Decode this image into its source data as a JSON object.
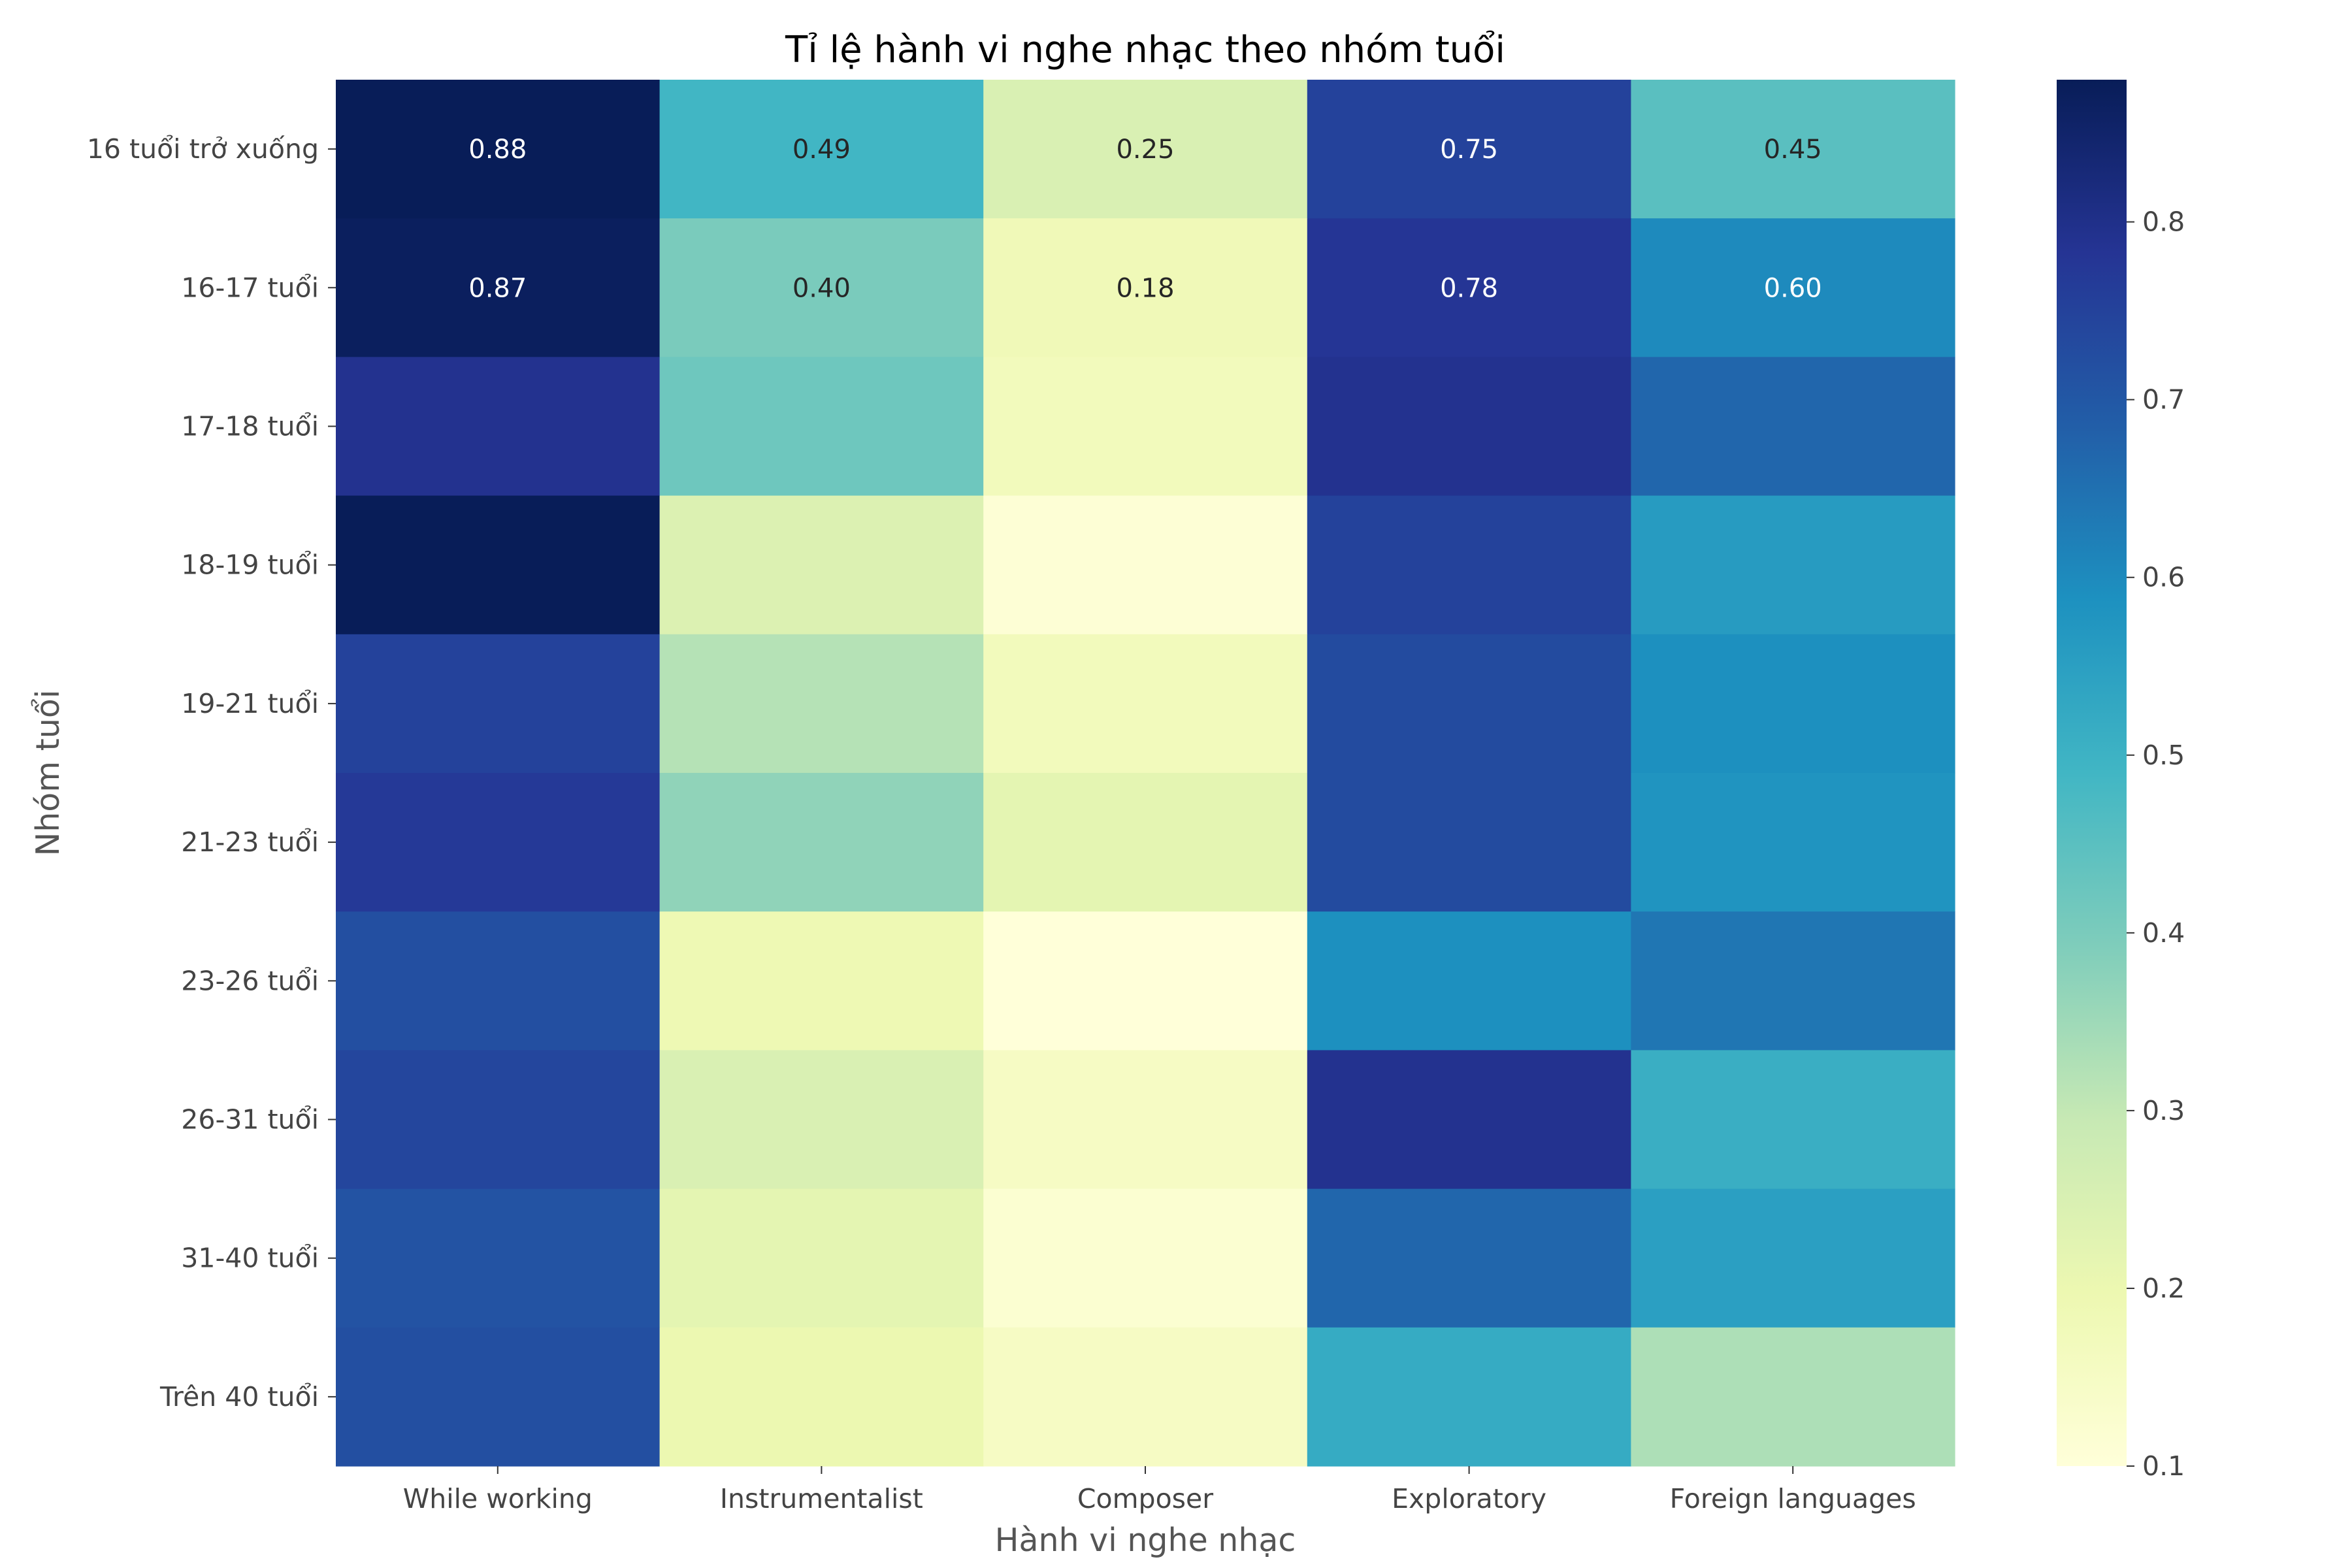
{
  "chart_data": {
    "type": "heatmap",
    "title": "Tỉ lệ hành vi nghe nhạc theo nhóm tuổi",
    "xlabel": "Hành vi nghe nhạc",
    "ylabel": "Nhóm tuổi",
    "colormap": "YlGnBu",
    "x_categories": [
      "While working",
      "Instrumentalist",
      "Composer",
      "Exploratory",
      "Foreign languages"
    ],
    "y_categories": [
      "16 tuổi trở xuống",
      "16-17 tuổi",
      "17-18 tuổi",
      "18-19 tuổi",
      "19-21 tuổi",
      "21-23 tuổi",
      "23-26 tuổi",
      "26-31 tuổi",
      "31-40 tuổi",
      "Trên 40 tuổi"
    ],
    "values": [
      [
        0.88,
        0.49,
        0.25,
        0.75,
        0.45
      ],
      [
        0.87,
        0.4,
        0.18,
        0.78,
        0.6
      ],
      [
        0.79,
        0.42,
        0.17,
        0.79,
        0.67
      ],
      [
        0.88,
        0.24,
        0.11,
        0.75,
        0.56
      ],
      [
        0.75,
        0.32,
        0.17,
        0.73,
        0.59
      ],
      [
        0.77,
        0.37,
        0.22,
        0.73,
        0.58
      ],
      [
        0.72,
        0.19,
        0.1,
        0.59,
        0.64
      ],
      [
        0.74,
        0.25,
        0.15,
        0.79,
        0.51
      ],
      [
        0.71,
        0.22,
        0.12,
        0.67,
        0.55
      ],
      [
        0.72,
        0.2,
        0.15,
        0.52,
        0.33
      ]
    ],
    "annotated_rows": [
      0,
      1
    ],
    "colorbar": {
      "min": 0.1,
      "max": 0.88,
      "ticks": [
        "0.1",
        "0.2",
        "0.3",
        "0.4",
        "0.5",
        "0.6",
        "0.7",
        "0.8"
      ]
    },
    "grid": false
  }
}
